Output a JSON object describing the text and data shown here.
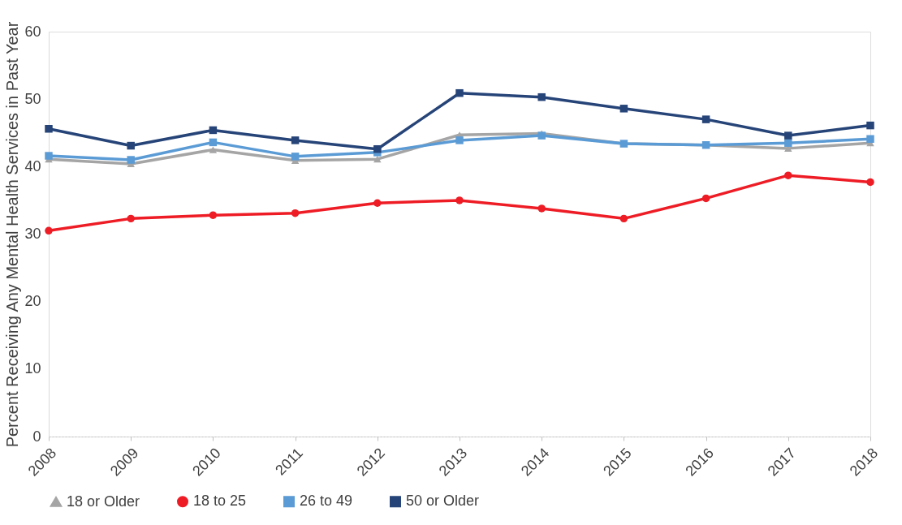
{
  "chart_data": {
    "type": "line",
    "ylabel": "Percent Receiving Any Mental Health Services in Past Year",
    "categories": [
      "2008",
      "2009",
      "2010",
      "2011",
      "2012",
      "2013",
      "2014",
      "2015",
      "2016",
      "2017",
      "2018"
    ],
    "series": [
      {
        "name": "18 or Older",
        "color": "#a5a5a5",
        "marker": "triangle",
        "values": [
          41.1,
          40.4,
          42.5,
          40.9,
          41.1,
          44.7,
          44.9,
          43.4,
          43.2,
          42.7,
          43.5
        ]
      },
      {
        "name": "18 to 25",
        "color": "#ee1c25",
        "marker": "circle",
        "values": [
          30.5,
          32.3,
          32.8,
          33.1,
          34.6,
          35.0,
          33.8,
          32.3,
          35.3,
          38.7,
          37.7
        ]
      },
      {
        "name": "26 to 49",
        "color": "#5b9bd5",
        "marker": "square",
        "values": [
          41.6,
          41.0,
          43.6,
          41.5,
          42.1,
          43.9,
          44.6,
          43.4,
          43.2,
          43.5,
          44.1
        ]
      },
      {
        "name": "50 or Older",
        "color": "#264478",
        "marker": "square",
        "values": [
          45.6,
          43.1,
          45.4,
          43.9,
          42.6,
          50.9,
          50.3,
          48.6,
          47.0,
          44.6,
          46.1
        ]
      }
    ],
    "ylim": [
      0,
      60
    ],
    "yticks": [
      0,
      10,
      20,
      30,
      40,
      50,
      60
    ],
    "grid": false,
    "legend": "bottom",
    "line_style": "solid"
  }
}
